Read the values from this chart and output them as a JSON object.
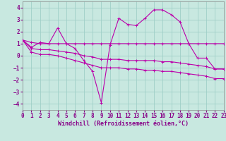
{
  "xlabel": "Windchill (Refroidissement éolien,°C)",
  "background_color": "#c8e8e0",
  "grid_color": "#a0cfc8",
  "line_color": "#bb00aa",
  "xlim": [
    0,
    23
  ],
  "ylim": [
    -4.5,
    4.5
  ],
  "xticks": [
    0,
    1,
    2,
    3,
    4,
    5,
    6,
    7,
    8,
    9,
    10,
    11,
    12,
    13,
    14,
    15,
    16,
    17,
    18,
    19,
    20,
    21,
    22,
    23
  ],
  "yticks": [
    -4,
    -3,
    -2,
    -1,
    0,
    1,
    2,
    3,
    4
  ],
  "series": [
    [
      1.3,
      0.7,
      1.1,
      1.0,
      2.3,
      1.0,
      0.6,
      -0.4,
      -1.3,
      -3.9,
      0.9,
      3.1,
      2.6,
      2.5,
      3.1,
      3.8,
      3.8,
      3.4,
      2.8,
      1.0,
      -0.2,
      -0.2,
      -1.1,
      -1.1
    ],
    [
      1.3,
      1.1,
      1.0,
      1.0,
      1.0,
      1.0,
      1.0,
      1.0,
      1.0,
      1.0,
      1.0,
      1.0,
      1.0,
      1.0,
      1.0,
      1.0,
      1.0,
      1.0,
      1.0,
      1.0,
      1.0,
      1.0,
      1.0,
      1.0
    ],
    [
      1.3,
      0.6,
      0.5,
      0.5,
      0.4,
      0.3,
      0.2,
      0.0,
      -0.1,
      -0.3,
      -0.3,
      -0.3,
      -0.4,
      -0.4,
      -0.4,
      -0.4,
      -0.5,
      -0.5,
      -0.6,
      -0.7,
      -0.8,
      -0.9,
      -1.1,
      -1.1
    ],
    [
      1.3,
      0.3,
      0.1,
      0.1,
      0.0,
      -0.2,
      -0.4,
      -0.6,
      -0.8,
      -1.0,
      -1.0,
      -1.0,
      -1.1,
      -1.1,
      -1.2,
      -1.2,
      -1.3,
      -1.3,
      -1.4,
      -1.5,
      -1.6,
      -1.7,
      -1.9,
      -1.9
    ]
  ],
  "tick_color": "#880088",
  "xlabel_color": "#880088",
  "xlabel_fontsize": 6.0,
  "tick_fontsize": 5.5,
  "spine_color": "#888888"
}
